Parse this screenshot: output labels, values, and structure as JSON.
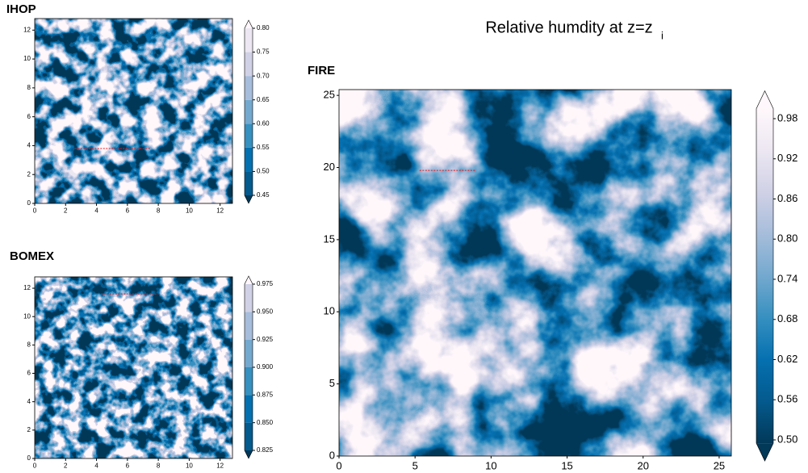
{
  "title": "Relative humdity at z=z",
  "title_subscript": "i",
  "chart_data": [
    {
      "type": "heatmap",
      "title": "IHOP",
      "xlim": [
        0,
        12.8
      ],
      "ylim": [
        0,
        12.8
      ],
      "xticks": [
        0,
        2,
        4,
        6,
        8,
        10,
        12
      ],
      "yticks": [
        0,
        2,
        4,
        6,
        8,
        10,
        12
      ],
      "colorbar": {
        "lim": [
          0.45,
          0.8
        ],
        "discrete": true,
        "ticks": [
          {
            "value": 0.45,
            "label": "0.45"
          },
          {
            "value": 0.5,
            "label": "0.50"
          },
          {
            "value": 0.55,
            "label": "0.55"
          },
          {
            "value": 0.6,
            "label": "0.60"
          },
          {
            "value": 0.65,
            "label": "0.65"
          },
          {
            "value": 0.7,
            "label": "0.70"
          },
          {
            "value": 0.75,
            "label": "0.75"
          },
          {
            "value": 0.8,
            "label": "0.80"
          }
        ],
        "colors": [
          "#023858",
          "#045a8d",
          "#0570b0",
          "#3690c0",
          "#74a9cf",
          "#a6bddb",
          "#d0d1e6",
          "#ece7f2",
          "#fff7fb"
        ]
      },
      "transect": {
        "x": [
          2.6,
          7.5
        ],
        "y": 3.8,
        "color": "#e41a1c"
      }
    },
    {
      "type": "heatmap",
      "title": "BOMEX",
      "xlim": [
        0,
        12.8
      ],
      "ylim": [
        0,
        12.8
      ],
      "xticks": [
        0,
        2,
        4,
        6,
        8,
        10,
        12
      ],
      "yticks": [
        0,
        2,
        4,
        6,
        8,
        10,
        12
      ],
      "colorbar": {
        "lim": [
          0.825,
          0.975
        ],
        "discrete": true,
        "ticks": [
          0.825,
          {
            "value": 0.85,
            "label": "0.850"
          },
          0.875,
          {
            "value": 0.9,
            "label": "0.900"
          },
          0.925,
          {
            "value": 0.95,
            "label": "0.950"
          },
          0.975
        ],
        "colors": [
          "#023858",
          "#045a8d",
          "#0570b0",
          "#3690c0",
          "#74a9cf",
          "#a6bddb",
          "#d0d1e6",
          "#fff7fb"
        ]
      },
      "transect": {
        "x": [
          4.3,
          8.0
        ],
        "y": 11.6,
        "color": "#e41a1c"
      }
    },
    {
      "type": "heatmap",
      "title": "FIRE",
      "xlim": [
        0,
        25.8
      ],
      "ylim": [
        0,
        25.4
      ],
      "xticks": [
        0,
        5,
        10,
        15,
        20,
        25
      ],
      "yticks": [
        0,
        5,
        10,
        15,
        20,
        25
      ],
      "colorbar": {
        "lim": [
          0.495,
          0.995
        ],
        "discrete": false,
        "ticks": [
          {
            "value": 0.5,
            "label": "0.50"
          },
          0.56,
          0.62,
          0.68,
          0.74,
          {
            "value": 0.8,
            "label": "0.80"
          },
          0.86,
          0.92,
          0.98
        ],
        "colors": [
          "#023858",
          "#045a8d",
          "#0570b0",
          "#3690c0",
          "#74a9cf",
          "#a6bddb",
          "#d0d1e6",
          "#ece7f2",
          "#fff7fb"
        ]
      },
      "transect": {
        "x": [
          5.3,
          9.0
        ],
        "y": 19.8,
        "color": "#e41a1c"
      }
    }
  ]
}
